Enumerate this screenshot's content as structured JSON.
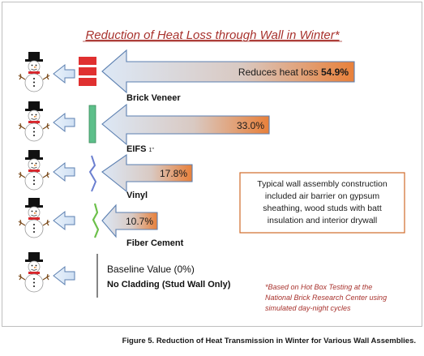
{
  "title": "Reduction of Heat Loss through Wall in Winter*",
  "rows": [
    {
      "id": "brick",
      "wall": "Brick Veneer",
      "wall_sub": "",
      "value_prefix": "Reduces heat loss ",
      "value": "54.9%",
      "pct": 54.9
    },
    {
      "id": "eifs",
      "wall": "EIFS",
      "wall_sub": "1\"",
      "value_prefix": "",
      "value": "33.0%",
      "pct": 33.0
    },
    {
      "id": "vinyl",
      "wall": "Vinyl",
      "wall_sub": "",
      "value_prefix": "",
      "value": "17.8%",
      "pct": 17.8
    },
    {
      "id": "fiber",
      "wall": "Fiber Cement",
      "wall_sub": "",
      "value_prefix": "",
      "value": "10.7%",
      "pct": 10.7
    }
  ],
  "baseline": {
    "value_label": "Baseline Value (0%)",
    "wall": "No Cladding (Stud Wall Only)"
  },
  "note": {
    "lines": [
      "Typical wall assembly construction",
      "included air barrier on gypsum",
      "sheathing, wood studs with batt",
      "insulation and interior drywall"
    ]
  },
  "footnote": {
    "lines": [
      "*Based on Hot Box Testing at the",
      "National Brick Research Center using",
      "simulated day-night cycles"
    ]
  },
  "caption": "Figure 5. Reduction of Heat Transmission in Winter for Various Wall Assemblies.",
  "colors": {
    "frame": "#bfbfbf",
    "title": "#a8322d",
    "arrow_start": "#c9dbf0",
    "arrow_end": "#e88a3c",
    "arrow_stroke": "#5b7fb0",
    "brick": "#e03030",
    "eifs": "#5dbf8a",
    "vinyl": "#6b7fd0",
    "fiber": "#6cc04a",
    "note_border": "#d06a2a",
    "footnote": "#a8322d"
  }
}
